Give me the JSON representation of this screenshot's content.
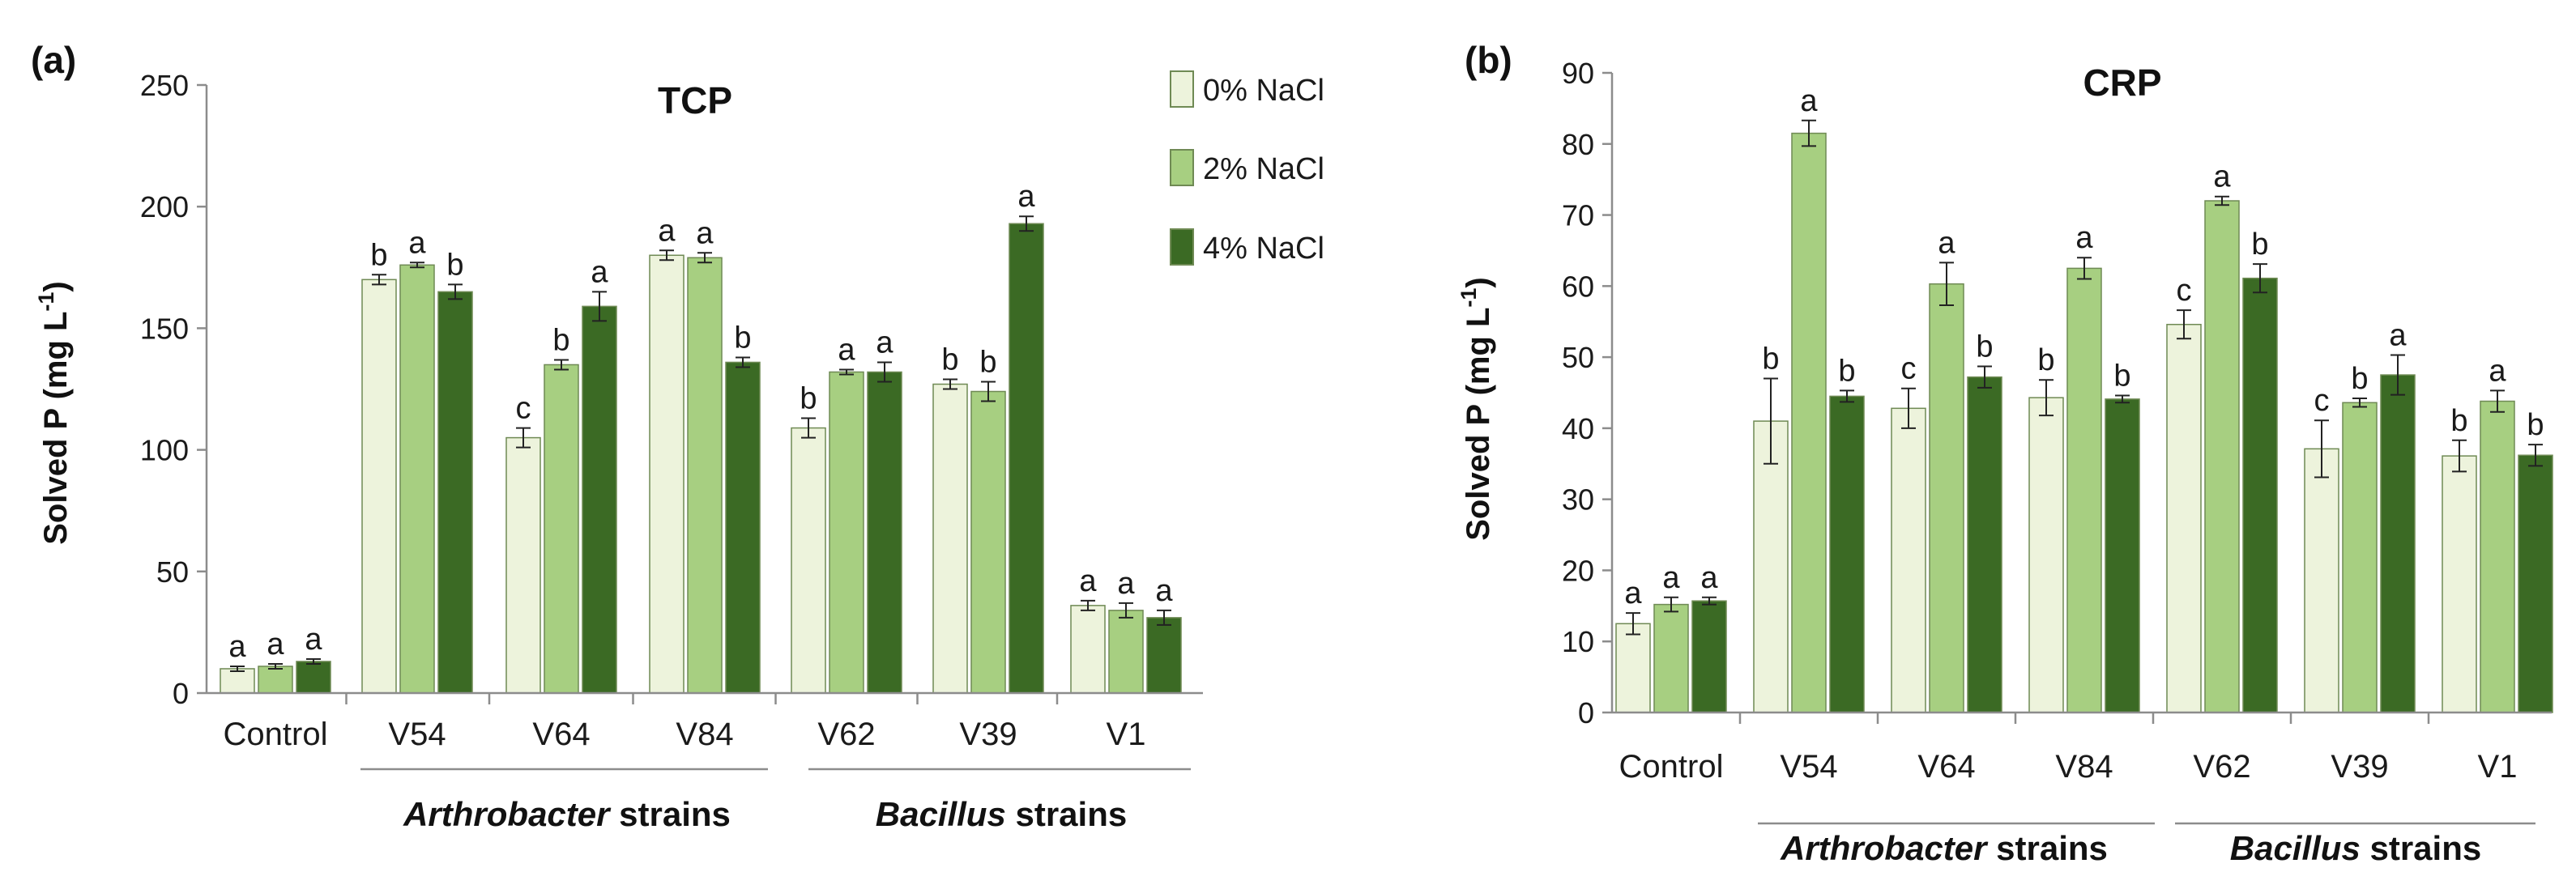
{
  "chart_data": [
    {
      "type": "bar",
      "panel_label": "(a)",
      "title": "TCP",
      "ylabel": "Solved P (mg L",
      "ylabel_sup": "-1",
      "ylabel_close": ")",
      "ylim": [
        0,
        250
      ],
      "yticks": [
        "0",
        "50",
        "100",
        "150",
        "200",
        "250"
      ],
      "categories": [
        "Control",
        "V54",
        "V64",
        "V84",
        "V62",
        "V39",
        "V1"
      ],
      "groups": [
        {
          "prefix": "Arthrobacter",
          "suffix": " strains"
        },
        {
          "prefix": "Bacillus",
          "suffix": " strains"
        }
      ],
      "series": [
        {
          "name": "0% NaCl",
          "values": [
            10,
            170,
            105,
            180,
            109,
            127,
            36
          ],
          "errors": [
            1,
            2,
            4,
            2,
            4,
            2,
            2
          ],
          "letters": [
            "a",
            "b",
            "c",
            "a",
            "b",
            "b",
            "a"
          ]
        },
        {
          "name": "2% NaCl",
          "values": [
            11,
            176,
            135,
            179,
            132,
            124,
            34
          ],
          "errors": [
            1,
            1,
            2,
            2,
            1,
            4,
            3
          ],
          "letters": [
            "a",
            "a",
            "b",
            "a",
            "a",
            "b",
            "a"
          ]
        },
        {
          "name": "4% NaCl",
          "values": [
            13,
            165,
            159,
            136,
            132,
            193,
            31
          ],
          "errors": [
            1,
            3,
            6,
            2,
            4,
            3,
            3
          ],
          "letters": [
            "a",
            "b",
            "a",
            "b",
            "a",
            "a",
            "a"
          ]
        }
      ]
    },
    {
      "type": "bar",
      "panel_label": "(b)",
      "title": "CRP",
      "ylabel": "Solved P (mg L",
      "ylabel_sup": "-1",
      "ylabel_close": ")",
      "ylim": [
        0,
        90
      ],
      "yticks": [
        "0",
        "10",
        "20",
        "30",
        "40",
        "50",
        "60",
        "70",
        "80",
        "90"
      ],
      "categories": [
        "Control",
        "V54",
        "V64",
        "V84",
        "V62",
        "V39",
        "V1"
      ],
      "groups": [
        {
          "prefix": "Arthrobacter",
          "suffix": " strains"
        },
        {
          "prefix": "Bacillus",
          "suffix": " strains"
        }
      ],
      "series": [
        {
          "name": "0% NaCl",
          "values": [
            12.5,
            41,
            42.8,
            44.3,
            54.6,
            37.1,
            36.1
          ],
          "errors": [
            1.5,
            6,
            2.8,
            2.5,
            2,
            4,
            2.2
          ],
          "letters": [
            "a",
            "b",
            "c",
            "b",
            "c",
            "c",
            "b"
          ]
        },
        {
          "name": "2% NaCl",
          "values": [
            15.2,
            81.5,
            60.3,
            62.5,
            72,
            43.6,
            43.8
          ],
          "errors": [
            1,
            1.8,
            3,
            1.5,
            0.6,
            0.6,
            1.5
          ],
          "letters": [
            "a",
            "a",
            "a",
            "a",
            "a",
            "b",
            "a"
          ]
        },
        {
          "name": "4% NaCl",
          "values": [
            15.7,
            44.5,
            47.2,
            44.1,
            61.1,
            47.5,
            36.2
          ],
          "errors": [
            0.5,
            0.8,
            1.5,
            0.5,
            2,
            2.8,
            1.5
          ],
          "letters": [
            "a",
            "b",
            "b",
            "b",
            "b",
            "a",
            "b"
          ]
        }
      ]
    }
  ],
  "legend": [
    "0% NaCl",
    "2% NaCl",
    "4% NaCl"
  ],
  "colors": {
    "series": [
      "#edf3dc",
      "#a7cf81",
      "#3b6a24"
    ],
    "edge": "#6f8a54",
    "axis": "#8c8c8c",
    "text": "#1a1a1a"
  }
}
